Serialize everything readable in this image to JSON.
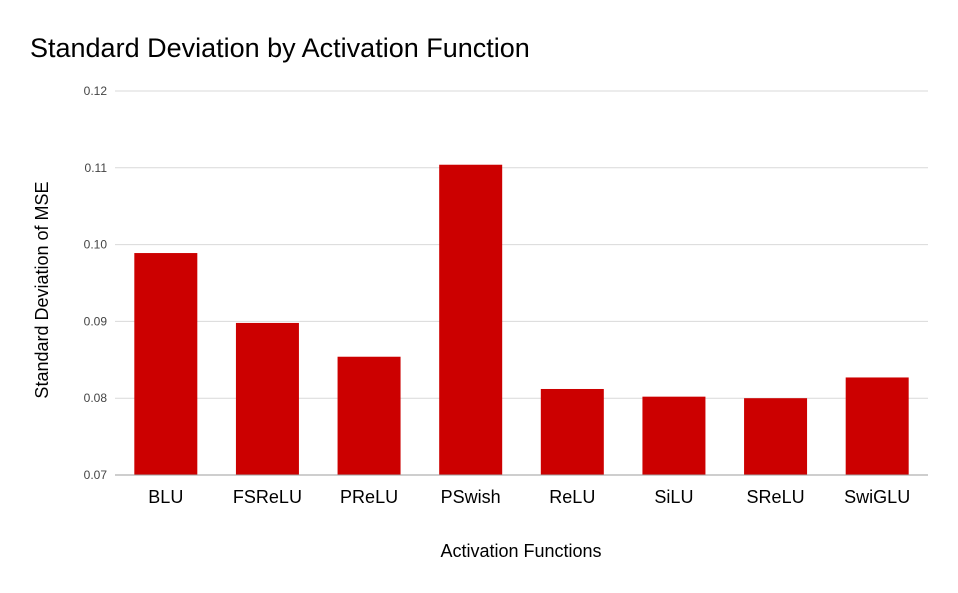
{
  "chart_data": {
    "type": "bar",
    "title": "Standard Deviation by Activation Function",
    "xlabel": "Activation Functions",
    "ylabel": "Standard Deviation of MSE",
    "categories": [
      "BLU",
      "FSReLU",
      "PReLU",
      "PSwish",
      "ReLU",
      "SiLU",
      "SReLU",
      "SwiGLU"
    ],
    "values": [
      0.0989,
      0.0898,
      0.0854,
      0.1104,
      0.0812,
      0.0802,
      0.08,
      0.0827
    ],
    "ylim": [
      0.07,
      0.12
    ],
    "yticks": [
      "0.07",
      "0.08",
      "0.09",
      "0.10",
      "0.11",
      "0.12"
    ],
    "grid": true,
    "legend": "none",
    "bar_color": "#cc0000"
  }
}
